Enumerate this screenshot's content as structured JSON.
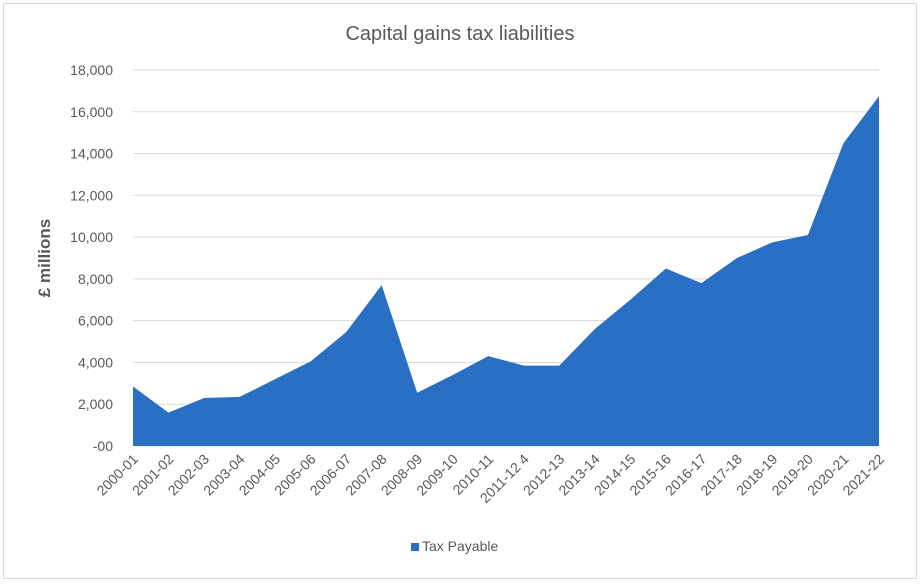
{
  "chart_data": {
    "type": "area",
    "title": "Capital gains tax liabilities",
    "xlabel": "",
    "ylabel": "£ millions",
    "ylim": [
      0,
      18000
    ],
    "yticks": [
      0,
      2000,
      4000,
      6000,
      8000,
      10000,
      12000,
      14000,
      16000,
      18000
    ],
    "ytick_labels": [
      "-00",
      "2,000",
      "4,000",
      "6,000",
      "8,000",
      "10,000",
      "12,000",
      "14,000",
      "16,000",
      "18,000"
    ],
    "grid": true,
    "legend": "bottom",
    "categories": [
      "2000-01",
      "2001-02",
      "2002-03",
      "2003-04",
      "2004-05",
      "2005-06",
      "2006-07",
      "2007-08",
      "2008-09",
      "2009-10",
      "2010-11",
      "2011-12 4",
      "2012-13",
      "2013-14",
      "2014-15",
      "2015-16",
      "2016-17",
      "2017-18",
      "2018-19",
      "2019-20",
      "2020-21",
      "2021-22"
    ],
    "series": [
      {
        "name": "Tax Payable",
        "color": "#2970c4",
        "values": [
          2850,
          1600,
          2300,
          2350,
          3200,
          4050,
          5450,
          7700,
          2550,
          3400,
          4300,
          3850,
          3850,
          5600,
          7000,
          8500,
          7800,
          9000,
          9750,
          10100,
          14500,
          16750
        ]
      }
    ]
  }
}
